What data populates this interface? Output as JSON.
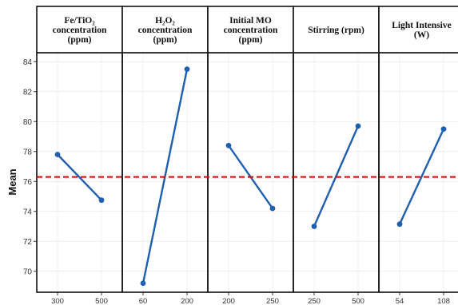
{
  "chart_data": {
    "type": "line",
    "ylabel": "Mean",
    "ylim": [
      68.6,
      84.6
    ],
    "yticks": [
      "70",
      "72",
      "74",
      "76",
      "78",
      "80",
      "82",
      "84"
    ],
    "reference_line": {
      "value": 76.3,
      "color": "#dd0000",
      "style": "dashed"
    },
    "line_color": "#1f5fb0",
    "grid": true,
    "panels": [
      {
        "title_lines": [
          "Fe/TiO₂",
          "concentration",
          "(ppm)"
        ],
        "x": [
          "300",
          "500"
        ],
        "values": [
          77.8,
          74.75
        ]
      },
      {
        "title_lines": [
          "H₂O₂",
          "concentration",
          "(ppm)"
        ],
        "x": [
          "60",
          "200"
        ],
        "values": [
          69.2,
          83.5
        ]
      },
      {
        "title_lines": [
          "Initial MO",
          "concentration",
          "(ppm)"
        ],
        "x": [
          "200",
          "250"
        ],
        "values": [
          78.4,
          74.2
        ]
      },
      {
        "title_lines": [
          "Stirring (rpm)"
        ],
        "x": [
          "250",
          "500"
        ],
        "values": [
          73.0,
          79.7
        ]
      },
      {
        "title_lines": [
          "Light Intensive",
          "(W)"
        ],
        "x": [
          "54",
          "108"
        ],
        "values": [
          73.15,
          79.5
        ]
      }
    ]
  }
}
